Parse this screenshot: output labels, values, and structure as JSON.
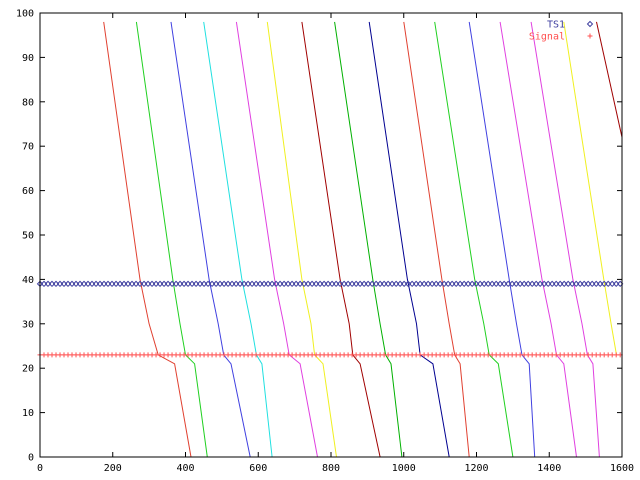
{
  "chart_data": {
    "type": "line",
    "title": "",
    "xlabel": "",
    "ylabel": "",
    "xlim": [
      0,
      1600
    ],
    "ylim": [
      0,
      100
    ],
    "xticks": [
      "0",
      "200",
      "400",
      "600",
      "800",
      "1000",
      "1200",
      "1400",
      "1600"
    ],
    "yticks": [
      "0",
      "10",
      "20",
      "30",
      "40",
      "50",
      "60",
      "70",
      "80",
      "90",
      "100"
    ],
    "grid": false,
    "legend_position": "top-right",
    "legend": [
      {
        "label": "TS1",
        "color": "#4040a0",
        "marker": "diamond",
        "y": 39
      },
      {
        "label": "Signal",
        "color": "#ff5050",
        "marker": "plus",
        "y": 23
      }
    ],
    "colors": [
      "#e04030",
      "#20d020",
      "#4040e0",
      "#20e0e0",
      "#e040e0",
      "#f0f020",
      "#a00000",
      "#00b000",
      "#000090"
    ],
    "sweeps": [
      {
        "color": "#e04030",
        "points": [
          [
            175,
            98
          ],
          [
            275,
            40
          ],
          [
            300,
            30
          ],
          [
            325,
            23
          ],
          [
            370,
            21
          ],
          [
            415,
            0
          ]
        ]
      },
      {
        "color": "#20d020",
        "points": [
          [
            265,
            98
          ],
          [
            365,
            40
          ],
          [
            385,
            30
          ],
          [
            400,
            23
          ],
          [
            425,
            21
          ],
          [
            460,
            0
          ]
        ]
      },
      {
        "color": "#4040e0",
        "points": [
          [
            360,
            98
          ],
          [
            465,
            40
          ],
          [
            490,
            30
          ],
          [
            505,
            23
          ],
          [
            525,
            21
          ],
          [
            578,
            0
          ]
        ]
      },
      {
        "color": "#20e0e0",
        "points": [
          [
            450,
            98
          ],
          [
            555,
            40
          ],
          [
            580,
            30
          ],
          [
            595,
            23
          ],
          [
            610,
            21
          ],
          [
            638,
            0
          ]
        ]
      },
      {
        "color": "#e040e0",
        "points": [
          [
            540,
            98
          ],
          [
            645,
            40
          ],
          [
            670,
            30
          ],
          [
            685,
            23
          ],
          [
            715,
            21
          ],
          [
            763,
            0
          ]
        ]
      },
      {
        "color": "#f0f020",
        "points": [
          [
            625,
            98
          ],
          [
            720,
            40
          ],
          [
            745,
            30
          ],
          [
            755,
            23
          ],
          [
            778,
            21
          ],
          [
            815,
            0
          ]
        ]
      },
      {
        "color": "#a00000",
        "points": [
          [
            720,
            98
          ],
          [
            825,
            40
          ],
          [
            850,
            30
          ],
          [
            860,
            23
          ],
          [
            880,
            21
          ],
          [
            935,
            0
          ]
        ]
      },
      {
        "color": "#00b000",
        "points": [
          [
            810,
            98
          ],
          [
            915,
            40
          ],
          [
            935,
            30
          ],
          [
            950,
            23
          ],
          [
            965,
            21
          ],
          [
            995,
            0
          ]
        ]
      },
      {
        "color": "#000090",
        "points": [
          [
            905,
            98
          ],
          [
            1010,
            40
          ],
          [
            1035,
            30
          ],
          [
            1045,
            23
          ],
          [
            1080,
            21
          ],
          [
            1125,
            0
          ]
        ]
      },
      {
        "color": "#e04030",
        "points": [
          [
            1000,
            98
          ],
          [
            1105,
            40
          ],
          [
            1125,
            30
          ],
          [
            1140,
            23
          ],
          [
            1155,
            21
          ],
          [
            1180,
            0
          ]
        ]
      },
      {
        "color": "#20d020",
        "points": [
          [
            1085,
            98
          ],
          [
            1195,
            40
          ],
          [
            1220,
            30
          ],
          [
            1235,
            23
          ],
          [
            1260,
            21
          ],
          [
            1300,
            0
          ]
        ]
      },
      {
        "color": "#4040e0",
        "points": [
          [
            1180,
            98
          ],
          [
            1290,
            40
          ],
          [
            1310,
            30
          ],
          [
            1325,
            23
          ],
          [
            1345,
            21
          ],
          [
            1360,
            0
          ]
        ]
      },
      {
        "color": "#e040e0",
        "points": [
          [
            1265,
            98
          ],
          [
            1380,
            40
          ],
          [
            1405,
            30
          ],
          [
            1420,
            23
          ],
          [
            1440,
            21
          ],
          [
            1475,
            0
          ]
        ]
      },
      {
        "color": "#e040e0",
        "points": [
          [
            1350,
            98
          ],
          [
            1465,
            40
          ],
          [
            1490,
            30
          ],
          [
            1505,
            23
          ],
          [
            1520,
            21
          ],
          [
            1538,
            0
          ]
        ]
      },
      {
        "color": "#f0f020",
        "points": [
          [
            1440,
            98
          ],
          [
            1550,
            40
          ],
          [
            1570,
            30
          ],
          [
            1585,
            23
          ]
        ]
      },
      {
        "color": "#a00000",
        "points": [
          [
            1530,
            98
          ],
          [
            1600,
            72
          ]
        ]
      }
    ],
    "series": [
      {
        "name": "TS1",
        "color": "#4040a0",
        "marker": "diamond",
        "y": 39,
        "x_start": 0,
        "x_end": 1600,
        "x_step": 11
      },
      {
        "name": "Signal",
        "color": "#ff5050",
        "marker": "plus",
        "y": 23,
        "x_start": 0,
        "x_end": 1600,
        "x_step": 11
      }
    ]
  }
}
